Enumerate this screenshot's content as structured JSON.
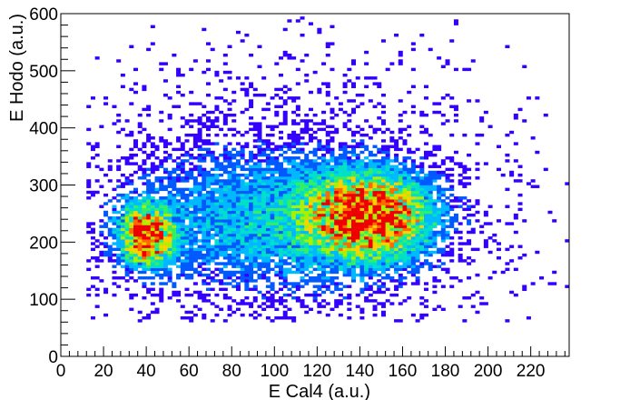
{
  "chart_data": {
    "type": "heatmap",
    "title": "",
    "xlabel": "E Cal4 (a.u.)",
    "ylabel": "E Hodo (a.u.)",
    "xlim": [
      0,
      238
    ],
    "ylim": [
      0,
      600
    ],
    "x_ticks": [
      0,
      20,
      40,
      60,
      80,
      100,
      120,
      140,
      160,
      180,
      200,
      220
    ],
    "x_tick_labels": [
      "0",
      "20",
      "40",
      "60",
      "80",
      "100",
      "120",
      "140",
      "160",
      "180",
      "200",
      "220"
    ],
    "y_ticks": [
      0,
      100,
      200,
      300,
      400,
      500,
      600
    ],
    "y_tick_labels": [
      "0",
      "100",
      "200",
      "300",
      "400",
      "500",
      "600"
    ],
    "grid": false,
    "legend": "none",
    "palette": [
      "#3300ff",
      "#0059ff",
      "#00b8ff",
      "#00e0c8",
      "#33ee66",
      "#aaf000",
      "#ffd000",
      "#ff6a00",
      "#ee0000"
    ],
    "bin_size": [
      2,
      5
    ],
    "clusters": [
      {
        "x_center": 40,
        "y_center": 212,
        "x_sigma": 8,
        "y_sigma": 34,
        "peak_density": 1.0
      },
      {
        "x_center": 145,
        "y_center": 245,
        "x_sigma": 18,
        "y_sigma": 48,
        "peak_density": 1.0
      },
      {
        "x_center": 100,
        "y_center": 240,
        "x_sigma": 50,
        "y_sigma": 85,
        "peak_density": 0.35
      }
    ],
    "occupied_region": {
      "x_range": [
        12,
        238
      ],
      "y_range": [
        60,
        600
      ]
    }
  }
}
